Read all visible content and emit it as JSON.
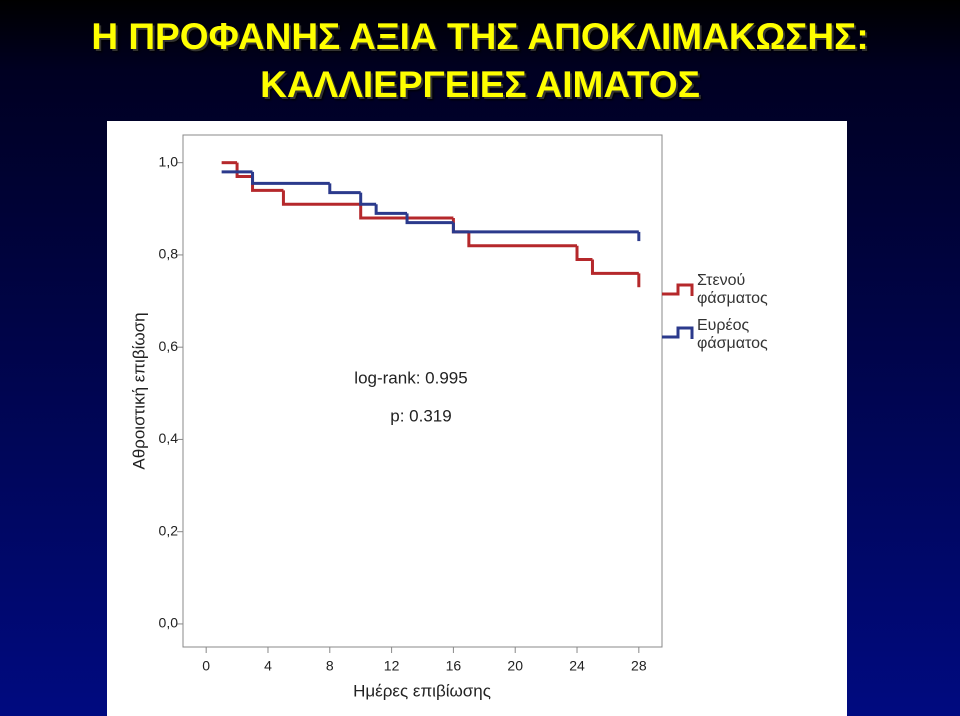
{
  "chart_data": {
    "type": "line",
    "title": [
      "Η ΠΡΟΦΑΝΗΣ ΑΞΙΑ ΤΗΣ ΑΠΟΚΛΙΜΑΚΩΣΗΣ:",
      "ΚΑΛΛΙΕΡΓΕΙΕΣ ΑΙΜΑΤΟΣ"
    ],
    "x_label": "Ημέρες επιβίωσης",
    "y_label": "Αθροιστική επιβίωση",
    "annotations": [
      "log-rank: 0.995",
      "p: 0.319"
    ],
    "step": true,
    "xlim": [
      -1.5,
      29.5
    ],
    "ylim": [
      -0.05,
      1.06
    ],
    "xticks": [
      0,
      4,
      8,
      12,
      16,
      20,
      24,
      28
    ],
    "yticks": [
      {
        "value": 0,
        "label": "0,0"
      },
      {
        "value": 0.2,
        "label": "0,2"
      },
      {
        "value": 0.4,
        "label": "0,4"
      },
      {
        "value": 0.6,
        "label": "0,6"
      },
      {
        "value": 0.8,
        "label": "0,8"
      },
      {
        "value": 1,
        "label": "1,0"
      }
    ],
    "series": [
      {
        "name": "Στενού φάσματος",
        "color": "#b5282b",
        "x": [
          1,
          2,
          3,
          5,
          10,
          16,
          17,
          24,
          25,
          28
        ],
        "values": [
          1.0,
          0.97,
          0.94,
          0.91,
          0.88,
          0.85,
          0.82,
          0.79,
          0.76,
          0.73
        ]
      },
      {
        "name": "Ευρέος φάσματος",
        "color": "#2b3a8c",
        "x": [
          1,
          3,
          8,
          10,
          11,
          13,
          16,
          28
        ],
        "values": [
          0.98,
          0.955,
          0.935,
          0.91,
          0.89,
          0.87,
          0.85,
          0.83
        ]
      }
    ]
  }
}
